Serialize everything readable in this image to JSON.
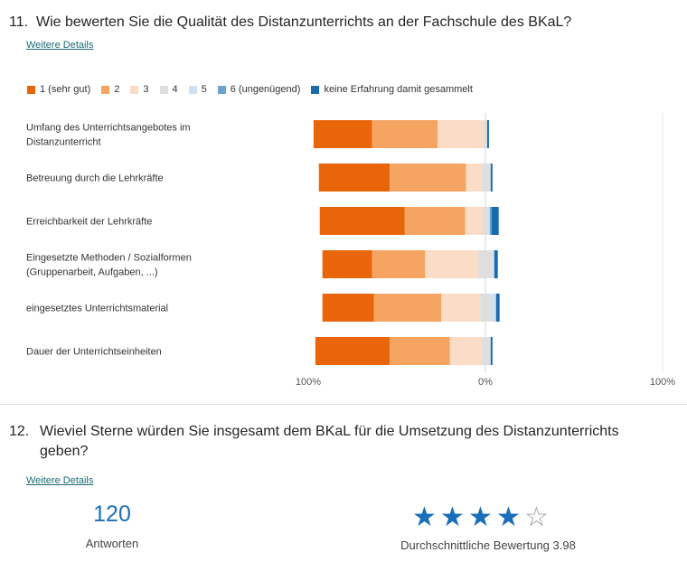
{
  "q11": {
    "number": "11.",
    "title": "Wie bewerten Sie die Qualität des Distanzunterrichts an der Fachschule des BKaL?",
    "details_link": "Weitere Details"
  },
  "q12": {
    "number": "12.",
    "title": "Wieviel Sterne würden Sie insgesamt dem BKaL für die Umsetzung des Distanzunterrichts geben?",
    "details_link": "Weitere Details",
    "responses_count": "120",
    "responses_label": "Antworten",
    "average_label": "Durchschnittliche Bewertung 3.98",
    "rating": 3.98,
    "max_stars": 5,
    "star_color": "#1a6fba"
  },
  "chart_data": {
    "type": "bar",
    "orientation": "horizontal-diverging-stacked",
    "categories": [
      "Umfang des Unterrichtsangebotes im Distanzunterricht",
      "Betreuung durch die Lehrkräfte",
      "Erreichbarkeit der Lehrkräfte",
      "Eingesetzte Methoden / Sozialformen (Gruppenarbeit, Aufgaben, ...)",
      "eingesetztes Unterrichtsmaterial",
      "Dauer der Unterrichtseinheiten"
    ],
    "series": [
      {
        "name": "1 (sehr gut)",
        "color": "#e8650a",
        "values": [
          33,
          40,
          48,
          28,
          29,
          42
        ]
      },
      {
        "name": "2",
        "color": "#f5a462",
        "values": [
          37,
          43,
          34,
          30,
          38,
          34
        ]
      },
      {
        "name": "3",
        "color": "#fbdcc6",
        "values": [
          26,
          9,
          10,
          30,
          22,
          18
        ]
      },
      {
        "name": "4",
        "color": "#dedede",
        "values": [
          2,
          4,
          3,
          8,
          6,
          4
        ]
      },
      {
        "name": "5",
        "color": "#cfe0ef",
        "values": [
          0,
          1,
          1,
          1,
          3,
          1
        ]
      },
      {
        "name": "6 (ungenügend)",
        "color": "#6da3d0",
        "values": [
          0,
          0,
          1,
          0,
          0,
          0
        ]
      },
      {
        "name": "keine Erfahrung damit gesammelt",
        "color": "#1a6aae",
        "values": [
          1,
          1,
          4,
          2,
          2,
          1
        ]
      }
    ],
    "x_ticks": [
      "100%",
      "0%",
      "100%"
    ],
    "xlim": [
      -100,
      100
    ],
    "legend_position": "top",
    "grid": false
  }
}
